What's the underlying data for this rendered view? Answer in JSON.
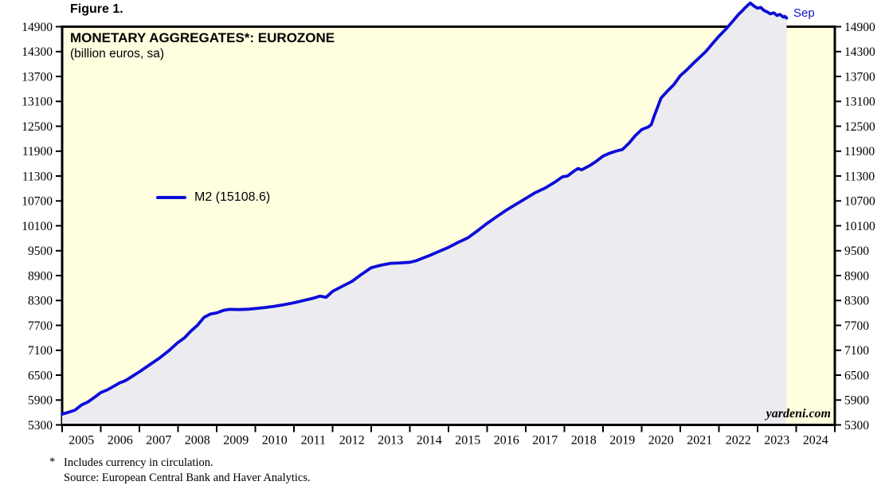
{
  "figure": {
    "label": "Figure 1."
  },
  "header": {
    "title": "MONETARY AGGREGATES*: EUROZONE",
    "subtitle": "(billion euros, sa)"
  },
  "legend": {
    "series_label": "M2 (15108.6)"
  },
  "annotations": {
    "last_point_label": "Sep",
    "watermark": "yardeni.com"
  },
  "footnotes": {
    "star": "*",
    "line1": "Includes currency in circulation.",
    "line2": "Source: European Central Bank and Haver Analytics."
  },
  "colors": {
    "line": "#0d0dd8",
    "annotation_blue": "#1414cc",
    "area_fill": "#ececf0",
    "plot_bg": "#ffffe0",
    "frame": "#000000"
  },
  "chart_data": {
    "type": "area",
    "title": "MONETARY AGGREGATES*: EUROZONE",
    "subtitle": "(billion euros, sa)",
    "grid": false,
    "legend_position": "left-middle",
    "x_axis": {
      "min": 2005,
      "max": 2025,
      "tick_boundaries": [
        2005,
        2006,
        2007,
        2008,
        2009,
        2010,
        2011,
        2012,
        2013,
        2014,
        2015,
        2016,
        2017,
        2018,
        2019,
        2020,
        2021,
        2022,
        2023,
        2024,
        2025
      ],
      "tick_labels": [
        "2005",
        "2006",
        "2007",
        "2008",
        "2009",
        "2010",
        "2011",
        "2012",
        "2013",
        "2014",
        "2015",
        "2016",
        "2017",
        "2018",
        "2019",
        "2020",
        "2021",
        "2022",
        "2023",
        "2024"
      ]
    },
    "y_axis": {
      "min": 5300,
      "max": 14900,
      "tick_step": 600,
      "sides": "both",
      "ticks": [
        5300,
        5900,
        6500,
        7100,
        7700,
        8300,
        8900,
        9500,
        10100,
        10700,
        11300,
        11900,
        12500,
        13100,
        13700,
        14300,
        14900
      ]
    },
    "series": [
      {
        "name": "M2",
        "latest_value": 15108.6,
        "latest_month_label": "Sep",
        "peak_value_estimate": 15470,
        "points": [
          [
            2005.0,
            5560
          ],
          [
            2005.17,
            5605
          ],
          [
            2005.33,
            5655
          ],
          [
            2005.5,
            5780
          ],
          [
            2005.67,
            5855
          ],
          [
            2005.83,
            5960
          ],
          [
            2006.0,
            6080
          ],
          [
            2006.17,
            6145
          ],
          [
            2006.33,
            6230
          ],
          [
            2006.5,
            6320
          ],
          [
            2006.58,
            6345
          ],
          [
            2006.67,
            6385
          ],
          [
            2006.83,
            6480
          ],
          [
            2007.0,
            6580
          ],
          [
            2007.25,
            6740
          ],
          [
            2007.5,
            6900
          ],
          [
            2007.75,
            7080
          ],
          [
            2008.0,
            7290
          ],
          [
            2008.17,
            7400
          ],
          [
            2008.33,
            7560
          ],
          [
            2008.5,
            7700
          ],
          [
            2008.67,
            7890
          ],
          [
            2008.83,
            7970
          ],
          [
            2009.0,
            8000
          ],
          [
            2009.17,
            8060
          ],
          [
            2009.33,
            8085
          ],
          [
            2009.58,
            8080
          ],
          [
            2009.83,
            8090
          ],
          [
            2010.0,
            8105
          ],
          [
            2010.25,
            8130
          ],
          [
            2010.5,
            8160
          ],
          [
            2010.75,
            8200
          ],
          [
            2011.0,
            8245
          ],
          [
            2011.25,
            8300
          ],
          [
            2011.5,
            8355
          ],
          [
            2011.67,
            8405
          ],
          [
            2011.83,
            8375
          ],
          [
            2012.0,
            8520
          ],
          [
            2012.25,
            8640
          ],
          [
            2012.5,
            8760
          ],
          [
            2012.75,
            8930
          ],
          [
            2013.0,
            9090
          ],
          [
            2013.25,
            9150
          ],
          [
            2013.5,
            9195
          ],
          [
            2013.75,
            9205
          ],
          [
            2014.0,
            9220
          ],
          [
            2014.17,
            9260
          ],
          [
            2014.33,
            9320
          ],
          [
            2014.5,
            9380
          ],
          [
            2014.75,
            9480
          ],
          [
            2015.0,
            9580
          ],
          [
            2015.25,
            9700
          ],
          [
            2015.5,
            9810
          ],
          [
            2015.75,
            9980
          ],
          [
            2016.0,
            10160
          ],
          [
            2016.25,
            10320
          ],
          [
            2016.5,
            10480
          ],
          [
            2016.75,
            10620
          ],
          [
            2017.0,
            10760
          ],
          [
            2017.25,
            10900
          ],
          [
            2017.5,
            11010
          ],
          [
            2017.75,
            11150
          ],
          [
            2017.95,
            11280
          ],
          [
            2018.08,
            11300
          ],
          [
            2018.25,
            11420
          ],
          [
            2018.35,
            11480
          ],
          [
            2018.45,
            11450
          ],
          [
            2018.67,
            11560
          ],
          [
            2018.83,
            11660
          ],
          [
            2019.0,
            11780
          ],
          [
            2019.17,
            11850
          ],
          [
            2019.33,
            11900
          ],
          [
            2019.5,
            11940
          ],
          [
            2019.67,
            12090
          ],
          [
            2019.83,
            12270
          ],
          [
            2020.0,
            12420
          ],
          [
            2020.08,
            12450
          ],
          [
            2020.17,
            12480
          ],
          [
            2020.25,
            12540
          ],
          [
            2020.33,
            12760
          ],
          [
            2020.42,
            12980
          ],
          [
            2020.5,
            13180
          ],
          [
            2020.67,
            13350
          ],
          [
            2020.83,
            13500
          ],
          [
            2021.0,
            13720
          ],
          [
            2021.17,
            13860
          ],
          [
            2021.33,
            14010
          ],
          [
            2021.5,
            14160
          ],
          [
            2021.67,
            14310
          ],
          [
            2021.83,
            14490
          ],
          [
            2022.0,
            14670
          ],
          [
            2022.17,
            14830
          ],
          [
            2022.33,
            15000
          ],
          [
            2022.5,
            15190
          ],
          [
            2022.58,
            15260
          ],
          [
            2022.67,
            15350
          ],
          [
            2022.75,
            15420
          ],
          [
            2022.81,
            15470
          ],
          [
            2022.92,
            15390
          ],
          [
            2023.0,
            15345
          ],
          [
            2023.08,
            15365
          ],
          [
            2023.17,
            15290
          ],
          [
            2023.25,
            15255
          ],
          [
            2023.33,
            15210
          ],
          [
            2023.42,
            15235
          ],
          [
            2023.5,
            15170
          ],
          [
            2023.58,
            15195
          ],
          [
            2023.67,
            15130
          ],
          [
            2023.71,
            15148
          ],
          [
            2023.75,
            15108.6
          ]
        ]
      }
    ]
  }
}
